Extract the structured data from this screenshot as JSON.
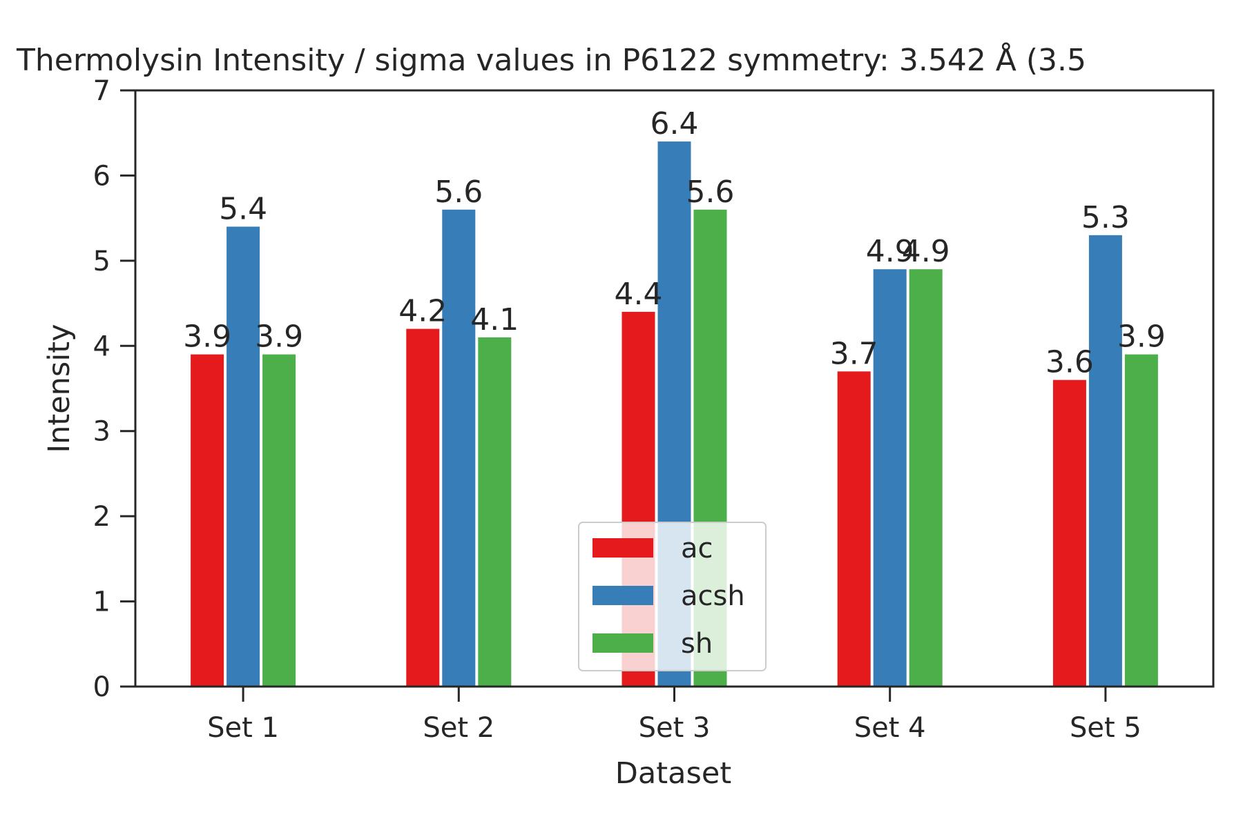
{
  "chart_data": {
    "type": "bar",
    "title": "Thermolysin Intensity / sigma values in P6122 symmetry: 3.542 Å (3.5",
    "xlabel": "Dataset",
    "ylabel": "Intensity",
    "categories": [
      "Set 1",
      "Set 2",
      "Set 3",
      "Set 4",
      "Set 5"
    ],
    "ylim": [
      0,
      7
    ],
    "yticks": [
      0,
      1,
      2,
      3,
      4,
      5,
      6,
      7
    ],
    "grid": false,
    "legend_position": "lower center",
    "series": [
      {
        "name": "ac",
        "color": "#e41a1c",
        "values": [
          3.9,
          4.2,
          4.4,
          3.7,
          3.6
        ],
        "labels": [
          "3.9",
          "4.2",
          "4.4",
          "3.7",
          "3.6"
        ]
      },
      {
        "name": "acsh",
        "color": "#377eb8",
        "values": [
          5.4,
          5.6,
          6.4,
          4.9,
          5.3
        ],
        "labels": [
          "5.4",
          "5.6",
          "6.4",
          "4.9",
          "5.3"
        ]
      },
      {
        "name": "sh",
        "color": "#4daf4a",
        "values": [
          3.9,
          4.1,
          5.6,
          4.9,
          3.9
        ],
        "labels": [
          "3.9",
          "4.1",
          "5.6",
          "4.9",
          "3.9"
        ]
      }
    ]
  }
}
